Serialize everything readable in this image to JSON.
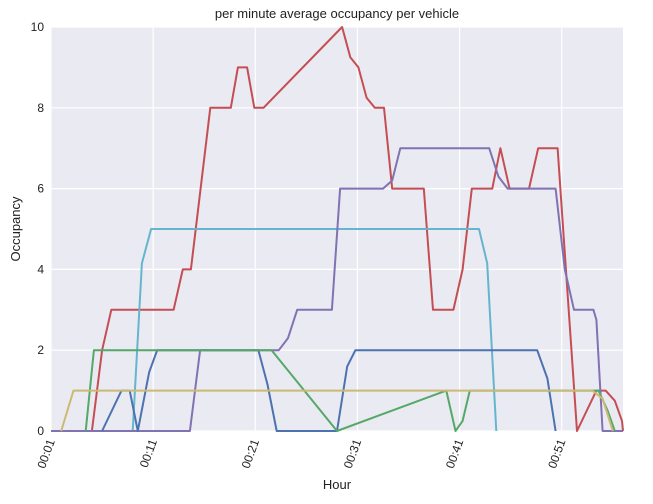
{
  "chart_data": {
    "type": "line",
    "title": "per minute average occupancy per vehicle",
    "xlabel": "Hour",
    "ylabel": "Occupancy",
    "xlim": [
      0,
      56
    ],
    "ylim": [
      0,
      10
    ],
    "grid": true,
    "background": "#eaeaf2",
    "x_ticks": [
      {
        "value": 0,
        "label": "00:01"
      },
      {
        "value": 10,
        "label": "00:11"
      },
      {
        "value": 20,
        "label": "00:21"
      },
      {
        "value": 30,
        "label": "00:31"
      },
      {
        "value": 40,
        "label": "00:41"
      },
      {
        "value": 50,
        "label": "00:51"
      }
    ],
    "y_ticks": [
      {
        "value": 0,
        "label": "0"
      },
      {
        "value": 2,
        "label": "2"
      },
      {
        "value": 4,
        "label": "4"
      },
      {
        "value": 6,
        "label": "6"
      },
      {
        "value": 8,
        "label": "8"
      },
      {
        "value": 10,
        "label": "10"
      }
    ],
    "series": [
      {
        "color": "#c44e52",
        "points": [
          [
            4,
            0
          ],
          [
            5,
            2
          ],
          [
            5.9,
            3
          ],
          [
            12,
            3
          ],
          [
            12.9,
            4
          ],
          [
            13.7,
            4
          ],
          [
            15.6,
            8
          ],
          [
            17.6,
            8
          ],
          [
            18.3,
            9
          ],
          [
            19.2,
            9
          ],
          [
            19.9,
            8
          ],
          [
            20.8,
            8
          ],
          [
            28.5,
            10
          ],
          [
            29.3,
            9.25
          ],
          [
            30.1,
            9
          ],
          [
            30.9,
            8.25
          ],
          [
            31.7,
            8
          ],
          [
            32.6,
            8
          ],
          [
            33.4,
            6
          ],
          [
            36.5,
            6
          ],
          [
            37.4,
            3
          ],
          [
            39.4,
            3
          ],
          [
            40.3,
            4
          ],
          [
            41.2,
            6
          ],
          [
            43.2,
            6
          ],
          [
            44,
            7
          ],
          [
            44.9,
            6
          ],
          [
            46.8,
            6
          ],
          [
            47.7,
            7
          ],
          [
            49.6,
            7
          ],
          [
            51.5,
            0
          ],
          [
            53.4,
            1
          ],
          [
            54.3,
            1
          ],
          [
            55.2,
            0.75
          ],
          [
            55.9,
            0.25
          ],
          [
            56,
            0
          ]
        ]
      },
      {
        "color": "#64b5cd",
        "points": [
          [
            8,
            0
          ],
          [
            8.9,
            4.15
          ],
          [
            9.8,
            5
          ],
          [
            41.9,
            5
          ],
          [
            42.7,
            4.15
          ],
          [
            43.6,
            0
          ]
        ]
      },
      {
        "color": "#8172b2",
        "points": [
          [
            0,
            0
          ],
          [
            13.6,
            0
          ],
          [
            14.6,
            2
          ],
          [
            20.5,
            2
          ],
          [
            22.3,
            2
          ],
          [
            23.2,
            2.3
          ],
          [
            24.1,
            3
          ],
          [
            27.5,
            3
          ],
          [
            28.3,
            6
          ],
          [
            32.5,
            6
          ],
          [
            33.4,
            6.2
          ],
          [
            34.2,
            7
          ],
          [
            42.9,
            7
          ],
          [
            43.8,
            6.3
          ],
          [
            44.7,
            6
          ],
          [
            49.4,
            6
          ],
          [
            50.3,
            4
          ],
          [
            51.2,
            3
          ],
          [
            53.1,
            3
          ],
          [
            53.4,
            2.75
          ],
          [
            54,
            0
          ],
          [
            56,
            0
          ]
        ]
      },
      {
        "color": "#4c72b0",
        "points": [
          [
            5,
            0
          ],
          [
            6.9,
            1
          ],
          [
            7.7,
            1
          ],
          [
            8.5,
            0
          ],
          [
            9.6,
            1.45
          ],
          [
            10.4,
            2
          ],
          [
            20.3,
            2
          ],
          [
            21.2,
            1.15
          ],
          [
            22.1,
            0
          ],
          [
            28,
            0
          ],
          [
            29,
            1.6
          ],
          [
            29.8,
            2
          ],
          [
            47.6,
            2
          ],
          [
            48.6,
            1.3
          ],
          [
            49.4,
            0
          ]
        ]
      },
      {
        "color": "#55a868",
        "points": [
          [
            3.4,
            0
          ],
          [
            4.2,
            2
          ],
          [
            20.7,
            2
          ],
          [
            21.6,
            2
          ],
          [
            28,
            0
          ],
          [
            38.7,
            1
          ],
          [
            39.6,
            0
          ],
          [
            40.3,
            0.25
          ],
          [
            41,
            1
          ],
          [
            53.6,
            1
          ],
          [
            54.5,
            0.5
          ],
          [
            55.2,
            0
          ]
        ]
      },
      {
        "color": "#ccb974",
        "points": [
          [
            1,
            0
          ],
          [
            2.2,
            1
          ],
          [
            39.4,
            1
          ],
          [
            40.2,
            1
          ],
          [
            53,
            1
          ],
          [
            54,
            0.8
          ],
          [
            55,
            0
          ]
        ]
      }
    ]
  }
}
